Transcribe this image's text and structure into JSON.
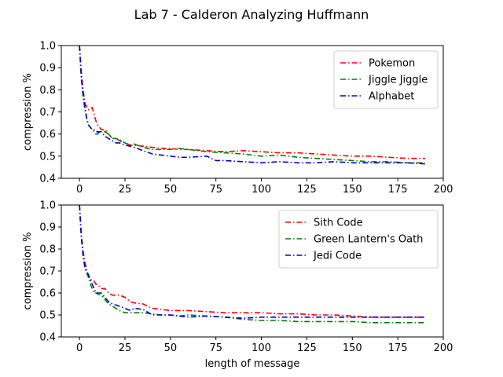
{
  "figure": {
    "title": "Lab 7 - Calderon Analyzing Huffmann"
  },
  "chart_data": [
    {
      "type": "line",
      "ylabel": "compression %",
      "xlabel": "",
      "xlim": [
        -10,
        200
      ],
      "ylim": [
        0.4,
        1.0
      ],
      "xticks": [
        0,
        25,
        50,
        75,
        100,
        125,
        150,
        175,
        200
      ],
      "yticks": [
        0.4,
        0.5,
        0.6,
        0.7,
        0.8,
        0.9,
        1.0
      ],
      "legend_position": "top-right",
      "series": [
        {
          "name": "Pokemon",
          "color": "#ff0000",
          "x": [
            0,
            1,
            2,
            3,
            4,
            5,
            6,
            7,
            8,
            9,
            10,
            12,
            14,
            16,
            18,
            20,
            22,
            25,
            28,
            30,
            35,
            40,
            45,
            50,
            55,
            60,
            70,
            80,
            90,
            100,
            110,
            120,
            130,
            140,
            150,
            160,
            170,
            180,
            190
          ],
          "y": [
            1.0,
            0.88,
            0.8,
            0.74,
            0.72,
            0.71,
            0.715,
            0.72,
            0.69,
            0.66,
            0.64,
            0.62,
            0.62,
            0.6,
            0.58,
            0.58,
            0.57,
            0.56,
            0.55,
            0.55,
            0.545,
            0.54,
            0.535,
            0.535,
            0.53,
            0.53,
            0.525,
            0.52,
            0.525,
            0.52,
            0.515,
            0.515,
            0.51,
            0.505,
            0.5,
            0.5,
            0.495,
            0.49,
            0.49
          ]
        },
        {
          "name": "Jiggle Jiggle",
          "color": "#008000",
          "x": [
            0,
            1,
            2,
            3,
            4,
            5,
            6,
            7,
            8,
            9,
            10,
            12,
            14,
            16,
            18,
            20,
            22,
            25,
            28,
            30,
            35,
            40,
            45,
            50,
            55,
            60,
            70,
            80,
            90,
            100,
            110,
            120,
            130,
            140,
            150,
            160,
            170,
            180,
            190
          ],
          "y": [
            1.0,
            0.85,
            0.77,
            0.71,
            0.67,
            0.64,
            0.63,
            0.62,
            0.61,
            0.6,
            0.6,
            0.62,
            0.61,
            0.6,
            0.58,
            0.58,
            0.575,
            0.56,
            0.55,
            0.555,
            0.54,
            0.53,
            0.53,
            0.53,
            0.535,
            0.53,
            0.52,
            0.515,
            0.51,
            0.5,
            0.505,
            0.495,
            0.49,
            0.485,
            0.48,
            0.475,
            0.475,
            0.47,
            0.47
          ]
        },
        {
          "name": "Alphabet",
          "color": "#0000cc",
          "x": [
            0,
            1,
            2,
            3,
            4,
            5,
            6,
            7,
            8,
            9,
            10,
            12,
            14,
            16,
            18,
            20,
            22,
            25,
            28,
            30,
            35,
            40,
            45,
            50,
            55,
            60,
            70,
            75,
            80,
            90,
            100,
            110,
            120,
            130,
            140,
            150,
            160,
            170,
            180,
            190
          ],
          "y": [
            1.0,
            0.86,
            0.78,
            0.72,
            0.67,
            0.64,
            0.63,
            0.62,
            0.62,
            0.61,
            0.61,
            0.61,
            0.59,
            0.58,
            0.57,
            0.56,
            0.56,
            0.55,
            0.545,
            0.54,
            0.525,
            0.51,
            0.505,
            0.5,
            0.495,
            0.495,
            0.5,
            0.48,
            0.48,
            0.475,
            0.47,
            0.475,
            0.47,
            0.47,
            0.475,
            0.47,
            0.47,
            0.47,
            0.47,
            0.465
          ]
        }
      ]
    },
    {
      "type": "line",
      "ylabel": "compression %",
      "xlabel": "length of message",
      "xlim": [
        -10,
        200
      ],
      "ylim": [
        0.4,
        1.0
      ],
      "xticks": [
        0,
        25,
        50,
        75,
        100,
        125,
        150,
        175,
        200
      ],
      "yticks": [
        0.4,
        0.5,
        0.6,
        0.7,
        0.8,
        0.9,
        1.0
      ],
      "legend_position": "top-right",
      "series": [
        {
          "name": "Sith Code",
          "color": "#ff0000",
          "x": [
            0,
            1,
            2,
            3,
            4,
            5,
            6,
            7,
            8,
            9,
            10,
            12,
            14,
            16,
            18,
            20,
            22,
            25,
            28,
            30,
            35,
            40,
            45,
            50,
            55,
            60,
            70,
            80,
            90,
            100,
            110,
            120,
            130,
            140,
            150,
            160,
            170,
            180,
            190
          ],
          "y": [
            1.0,
            0.87,
            0.79,
            0.74,
            0.7,
            0.68,
            0.66,
            0.66,
            0.655,
            0.64,
            0.64,
            0.62,
            0.62,
            0.6,
            0.59,
            0.59,
            0.59,
            0.58,
            0.56,
            0.555,
            0.55,
            0.53,
            0.525,
            0.52,
            0.52,
            0.52,
            0.515,
            0.51,
            0.51,
            0.51,
            0.505,
            0.505,
            0.5,
            0.5,
            0.495,
            0.49,
            0.49,
            0.49,
            0.49
          ]
        },
        {
          "name": "Green Lantern's Oath",
          "color": "#008000",
          "x": [
            0,
            1,
            2,
            3,
            4,
            5,
            6,
            7,
            8,
            9,
            10,
            12,
            14,
            16,
            18,
            20,
            22,
            25,
            28,
            30,
            35,
            40,
            45,
            50,
            55,
            60,
            70,
            80,
            90,
            100,
            110,
            120,
            130,
            140,
            150,
            160,
            170,
            180,
            190
          ],
          "y": [
            1.0,
            0.86,
            0.77,
            0.71,
            0.69,
            0.67,
            0.64,
            0.62,
            0.6,
            0.6,
            0.595,
            0.59,
            0.57,
            0.55,
            0.54,
            0.53,
            0.52,
            0.51,
            0.51,
            0.51,
            0.51,
            0.505,
            0.5,
            0.5,
            0.495,
            0.5,
            0.495,
            0.49,
            0.48,
            0.475,
            0.475,
            0.47,
            0.47,
            0.47,
            0.47,
            0.465,
            0.465,
            0.465,
            0.465
          ]
        },
        {
          "name": "Jedi Code",
          "color": "#0000cc",
          "x": [
            0,
            1,
            2,
            3,
            4,
            5,
            6,
            7,
            8,
            9,
            10,
            12,
            14,
            16,
            18,
            20,
            22,
            25,
            28,
            30,
            35,
            40,
            45,
            50,
            55,
            60,
            70,
            80,
            90,
            100,
            110,
            120,
            130,
            140,
            150,
            160,
            170,
            180,
            190
          ],
          "y": [
            1.0,
            0.85,
            0.77,
            0.72,
            0.7,
            0.68,
            0.66,
            0.64,
            0.62,
            0.6,
            0.6,
            0.6,
            0.58,
            0.56,
            0.55,
            0.545,
            0.54,
            0.53,
            0.52,
            0.53,
            0.525,
            0.5,
            0.5,
            0.5,
            0.495,
            0.49,
            0.495,
            0.49,
            0.485,
            0.49,
            0.49,
            0.49,
            0.49,
            0.49,
            0.49,
            0.49,
            0.49,
            0.49,
            0.49
          ]
        }
      ]
    }
  ]
}
